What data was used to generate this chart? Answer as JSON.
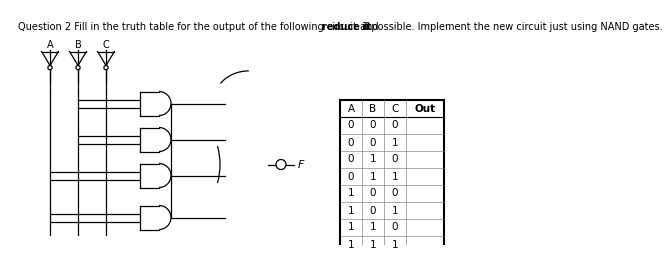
{
  "title_part1": "Question 2 Fill in the truth table for the output of the following circuit and ",
  "title_bold": "reduce it",
  "title_part2": " if possible. Implement the new circuit just using NAND gates.",
  "table_headers": [
    "A",
    "B",
    "C",
    "Out"
  ],
  "table_rows": [
    [
      "0",
      "0",
      "0",
      ""
    ],
    [
      "0",
      "0",
      "1",
      ""
    ],
    [
      "0",
      "1",
      "0",
      ""
    ],
    [
      "0",
      "1",
      "1",
      ""
    ],
    [
      "1",
      "0",
      "0",
      ""
    ],
    [
      "1",
      "0",
      "1",
      ""
    ],
    [
      "1",
      "1",
      "0",
      ""
    ],
    [
      "1",
      "1",
      "1",
      ""
    ]
  ],
  "bg_color": "#ffffff",
  "line_color": "#000000",
  "font_size": 7.0,
  "title_font_size": 7.0
}
